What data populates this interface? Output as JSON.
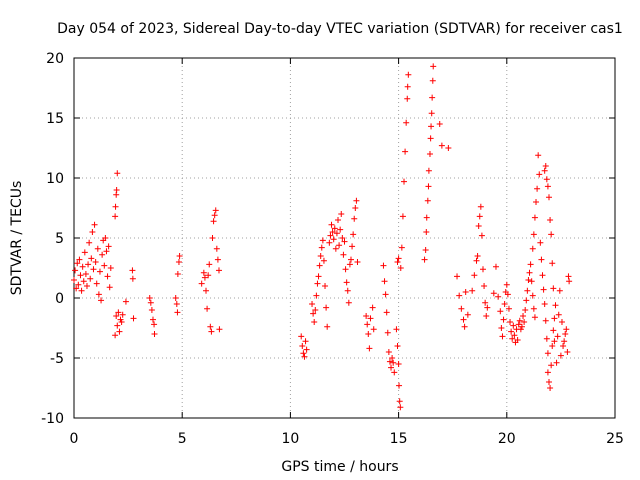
{
  "chart_data": {
    "type": "scatter",
    "title": "Day 054 of 2023, Sidereal Day-to-day VTEC variation (SDTVAR) for receiver cas1",
    "xlabel": "GPS time / hours",
    "ylabel": "SDTVAR / TECUs",
    "xlim": [
      0,
      25
    ],
    "ylim": [
      -10,
      20
    ],
    "xticks": [
      0,
      5,
      10,
      15,
      20,
      25
    ],
    "yticks": [
      -10,
      -5,
      0,
      5,
      10,
      15,
      20
    ],
    "grid": true,
    "marker": "+",
    "series": [
      {
        "name": "SDTVAR",
        "color": "#ff0000",
        "points": [
          [
            0.0,
            1.5
          ],
          [
            0.05,
            2.3
          ],
          [
            0.1,
            0.8
          ],
          [
            0.15,
            2.9
          ],
          [
            0.2,
            1.1
          ],
          [
            0.25,
            3.2
          ],
          [
            0.3,
            1.9
          ],
          [
            0.35,
            0.6
          ],
          [
            0.4,
            2.6
          ],
          [
            0.45,
            1.4
          ],
          [
            0.5,
            3.8
          ],
          [
            0.55,
            2.0
          ],
          [
            0.6,
            1.0
          ],
          [
            0.65,
            2.8
          ],
          [
            0.7,
            4.6
          ],
          [
            0.75,
            1.6
          ],
          [
            0.8,
            3.3
          ],
          [
            0.85,
            5.5
          ],
          [
            0.9,
            2.4
          ],
          [
            0.95,
            6.1
          ],
          [
            1.0,
            3.0
          ],
          [
            1.05,
            1.2
          ],
          [
            1.1,
            4.1
          ],
          [
            1.15,
            0.3
          ],
          [
            1.2,
            2.2
          ],
          [
            1.25,
            -0.2
          ],
          [
            1.3,
            3.6
          ],
          [
            1.35,
            4.8
          ],
          [
            1.4,
            2.7
          ],
          [
            1.45,
            5.0
          ],
          [
            1.5,
            3.9
          ],
          [
            1.55,
            1.8
          ],
          [
            1.6,
            4.3
          ],
          [
            1.65,
            0.9
          ],
          [
            1.7,
            2.5
          ],
          [
            1.9,
            -3.1
          ],
          [
            1.95,
            -1.5
          ],
          [
            2.0,
            -2.3
          ],
          [
            2.05,
            -1.2
          ],
          [
            2.1,
            -2.8
          ],
          [
            2.15,
            -1.8
          ],
          [
            2.2,
            -2.0
          ],
          [
            2.25,
            -1.4
          ],
          [
            1.9,
            6.8
          ],
          [
            1.92,
            7.6
          ],
          [
            1.95,
            8.6
          ],
          [
            1.97,
            9.0
          ],
          [
            2.0,
            10.4
          ],
          [
            2.4,
            -0.3
          ],
          [
            2.7,
            2.3
          ],
          [
            2.72,
            1.6
          ],
          [
            2.75,
            -1.7
          ],
          [
            3.5,
            0.0
          ],
          [
            3.55,
            -0.4
          ],
          [
            3.6,
            -1.0
          ],
          [
            3.65,
            -1.8
          ],
          [
            3.7,
            -2.2
          ],
          [
            3.72,
            -3.0
          ],
          [
            4.7,
            0.0
          ],
          [
            4.75,
            -0.5
          ],
          [
            4.78,
            -1.2
          ],
          [
            4.8,
            2.0
          ],
          [
            4.85,
            3.0
          ],
          [
            4.88,
            3.5
          ],
          [
            5.9,
            1.2
          ],
          [
            6.0,
            2.1
          ],
          [
            6.05,
            1.7
          ],
          [
            6.1,
            0.6
          ],
          [
            6.15,
            -0.9
          ],
          [
            6.2,
            1.9
          ],
          [
            6.25,
            2.8
          ],
          [
            6.3,
            -2.4
          ],
          [
            6.35,
            -2.8
          ],
          [
            6.4,
            5.0
          ],
          [
            6.45,
            6.4
          ],
          [
            6.5,
            6.9
          ],
          [
            6.55,
            7.3
          ],
          [
            6.6,
            4.1
          ],
          [
            6.65,
            3.2
          ],
          [
            6.7,
            2.3
          ],
          [
            6.72,
            -2.6
          ],
          [
            10.5,
            -3.2
          ],
          [
            10.55,
            -4.0
          ],
          [
            10.6,
            -4.6
          ],
          [
            10.65,
            -4.9
          ],
          [
            10.7,
            -3.6
          ],
          [
            10.75,
            -4.3
          ],
          [
            11.0,
            -0.5
          ],
          [
            11.05,
            -1.3
          ],
          [
            11.1,
            -2.0
          ],
          [
            11.15,
            -1.0
          ],
          [
            11.2,
            0.2
          ],
          [
            11.25,
            1.2
          ],
          [
            11.3,
            1.8
          ],
          [
            11.35,
            2.7
          ],
          [
            11.4,
            3.5
          ],
          [
            11.45,
            4.2
          ],
          [
            11.5,
            4.8
          ],
          [
            11.55,
            3.1
          ],
          [
            11.6,
            1.0
          ],
          [
            11.65,
            -0.8
          ],
          [
            11.7,
            -2.4
          ],
          [
            11.8,
            4.6
          ],
          [
            11.85,
            5.2
          ],
          [
            11.9,
            6.1
          ],
          [
            11.95,
            5.5
          ],
          [
            12.0,
            4.9
          ],
          [
            12.05,
            5.8
          ],
          [
            12.1,
            4.1
          ],
          [
            12.15,
            5.4
          ],
          [
            12.2,
            6.5
          ],
          [
            12.25,
            4.4
          ],
          [
            12.3,
            5.7
          ],
          [
            12.35,
            7.0
          ],
          [
            12.4,
            5.0
          ],
          [
            12.45,
            3.6
          ],
          [
            12.5,
            4.7
          ],
          [
            12.55,
            2.4
          ],
          [
            12.6,
            1.3
          ],
          [
            12.65,
            0.6
          ],
          [
            12.7,
            -0.4
          ],
          [
            12.75,
            2.8
          ],
          [
            12.8,
            3.2
          ],
          [
            12.85,
            4.3
          ],
          [
            12.9,
            5.3
          ],
          [
            12.95,
            6.6
          ],
          [
            13.0,
            7.5
          ],
          [
            13.05,
            8.1
          ],
          [
            13.1,
            3.0
          ],
          [
            13.5,
            -1.5
          ],
          [
            13.55,
            -2.2
          ],
          [
            13.6,
            -3.0
          ],
          [
            13.65,
            -4.2
          ],
          [
            13.7,
            -1.7
          ],
          [
            13.8,
            -0.8
          ],
          [
            13.85,
            -2.6
          ],
          [
            14.3,
            2.7
          ],
          [
            14.35,
            1.4
          ],
          [
            14.4,
            0.3
          ],
          [
            14.45,
            -1.2
          ],
          [
            14.5,
            -2.9
          ],
          [
            14.55,
            -4.5
          ],
          [
            14.6,
            -5.3
          ],
          [
            14.65,
            -5.8
          ],
          [
            14.7,
            -5.0
          ],
          [
            14.75,
            -5.4
          ],
          [
            14.8,
            -6.2
          ],
          [
            14.9,
            -2.6
          ],
          [
            14.95,
            -4.0
          ],
          [
            15.0,
            -5.5
          ],
          [
            15.02,
            -7.3
          ],
          [
            15.05,
            -8.6
          ],
          [
            15.08,
            -9.1
          ],
          [
            14.95,
            3.0
          ],
          [
            15.0,
            3.3
          ],
          [
            15.1,
            2.5
          ],
          [
            15.15,
            4.2
          ],
          [
            15.2,
            6.8
          ],
          [
            15.25,
            9.7
          ],
          [
            15.3,
            12.2
          ],
          [
            15.35,
            14.6
          ],
          [
            15.4,
            16.6
          ],
          [
            15.42,
            17.6
          ],
          [
            15.45,
            18.6
          ],
          [
            16.2,
            3.2
          ],
          [
            16.25,
            4.0
          ],
          [
            16.28,
            5.5
          ],
          [
            16.3,
            6.7
          ],
          [
            16.35,
            8.1
          ],
          [
            16.38,
            9.3
          ],
          [
            16.4,
            10.6
          ],
          [
            16.45,
            12.0
          ],
          [
            16.48,
            13.3
          ],
          [
            16.5,
            14.3
          ],
          [
            16.53,
            15.4
          ],
          [
            16.55,
            16.7
          ],
          [
            16.58,
            18.1
          ],
          [
            16.6,
            19.3
          ],
          [
            16.9,
            14.5
          ],
          [
            17.0,
            12.7
          ],
          [
            17.3,
            12.5
          ],
          [
            17.7,
            1.8
          ],
          [
            17.8,
            0.2
          ],
          [
            17.9,
            -0.9
          ],
          [
            18.0,
            -1.8
          ],
          [
            18.05,
            -2.4
          ],
          [
            18.1,
            0.5
          ],
          [
            18.2,
            -1.4
          ],
          [
            18.4,
            0.6
          ],
          [
            18.5,
            1.9
          ],
          [
            18.6,
            3.1
          ],
          [
            18.65,
            3.5
          ],
          [
            18.7,
            6.0
          ],
          [
            18.75,
            6.8
          ],
          [
            18.8,
            7.6
          ],
          [
            18.85,
            5.2
          ],
          [
            18.9,
            2.4
          ],
          [
            18.95,
            1.0
          ],
          [
            19.0,
            -0.4
          ],
          [
            19.05,
            -1.5
          ],
          [
            19.1,
            -0.8
          ],
          [
            19.4,
            0.4
          ],
          [
            19.5,
            2.6
          ],
          [
            19.6,
            0.1
          ],
          [
            19.7,
            -1.1
          ],
          [
            19.75,
            -2.5
          ],
          [
            19.8,
            -3.2
          ],
          [
            19.85,
            -1.8
          ],
          [
            19.9,
            -0.5
          ],
          [
            19.95,
            0.5
          ],
          [
            20.0,
            1.1
          ],
          [
            20.05,
            0.3
          ],
          [
            20.1,
            -0.9
          ],
          [
            20.15,
            -2.0
          ],
          [
            20.2,
            -2.8
          ],
          [
            20.25,
            -3.4
          ],
          [
            20.3,
            -2.3
          ],
          [
            20.35,
            -3.1
          ],
          [
            20.4,
            -3.7
          ],
          [
            20.45,
            -2.6
          ],
          [
            20.5,
            -3.5
          ],
          [
            20.55,
            -2.2
          ],
          [
            20.6,
            -1.9
          ],
          [
            20.65,
            -2.6
          ],
          [
            20.7,
            -2.4
          ],
          [
            20.75,
            -1.5
          ],
          [
            20.8,
            -2.0
          ],
          [
            20.85,
            -1.0
          ],
          [
            20.9,
            -0.2
          ],
          [
            20.95,
            0.6
          ],
          [
            21.0,
            1.5
          ],
          [
            21.05,
            2.1
          ],
          [
            21.1,
            2.8
          ],
          [
            21.15,
            1.4
          ],
          [
            21.2,
            0.2
          ],
          [
            21.25,
            -0.9
          ],
          [
            21.3,
            -1.6
          ],
          [
            21.2,
            4.1
          ],
          [
            21.25,
            5.3
          ],
          [
            21.3,
            6.7
          ],
          [
            21.35,
            8.0
          ],
          [
            21.4,
            9.1
          ],
          [
            21.45,
            11.9
          ],
          [
            21.5,
            10.3
          ],
          [
            21.55,
            4.6
          ],
          [
            21.6,
            3.2
          ],
          [
            21.65,
            1.9
          ],
          [
            21.7,
            0.7
          ],
          [
            21.75,
            -0.5
          ],
          [
            21.8,
            -1.9
          ],
          [
            21.85,
            -3.4
          ],
          [
            21.9,
            -4.6
          ],
          [
            21.75,
            10.6
          ],
          [
            21.8,
            11.0
          ],
          [
            21.85,
            9.9
          ],
          [
            21.9,
            9.3
          ],
          [
            21.95,
            8.4
          ],
          [
            22.0,
            6.5
          ],
          [
            22.05,
            5.3
          ],
          [
            22.1,
            2.9
          ],
          [
            22.15,
            0.8
          ],
          [
            22.2,
            -1.7
          ],
          [
            21.9,
            -6.2
          ],
          [
            21.95,
            -7.0
          ],
          [
            22.0,
            -7.5
          ],
          [
            22.05,
            -5.6
          ],
          [
            22.1,
            -4.0
          ],
          [
            22.15,
            -2.7
          ],
          [
            22.2,
            -3.6
          ],
          [
            22.25,
            -0.6
          ],
          [
            22.3,
            -5.4
          ],
          [
            22.35,
            -3.2
          ],
          [
            22.4,
            -1.4
          ],
          [
            22.45,
            0.6
          ],
          [
            22.5,
            -4.8
          ],
          [
            22.55,
            -2.0
          ],
          [
            22.6,
            -4.0
          ],
          [
            22.65,
            -3.6
          ],
          [
            22.7,
            -3.0
          ],
          [
            22.75,
            -2.6
          ],
          [
            22.8,
            -4.5
          ],
          [
            22.85,
            1.8
          ],
          [
            22.88,
            1.4
          ]
        ]
      }
    ]
  }
}
